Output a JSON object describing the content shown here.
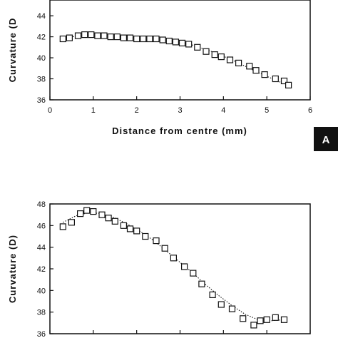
{
  "panel_badge": "A",
  "chart_data": [
    {
      "type": "scatter",
      "xlabel": "Distance  from  centre  (mm)",
      "ylabel": "Curvature  (D",
      "xlim": [
        0,
        6
      ],
      "ylim": [
        36,
        45.5
      ],
      "xticks": [
        "0",
        "1",
        "2",
        "3",
        "4",
        "5",
        "6"
      ],
      "yticks": [
        "36",
        "38",
        "40",
        "42",
        "44"
      ],
      "series": [
        {
          "marker": "open-square",
          "x": [
            0.3,
            0.45,
            0.65,
            0.8,
            0.95,
            1.1,
            1.25,
            1.4,
            1.55,
            1.7,
            1.85,
            2.0,
            2.15,
            2.3,
            2.45,
            2.6,
            2.75,
            2.9,
            3.05,
            3.2,
            3.4,
            3.6,
            3.8,
            3.95,
            4.15,
            4.35,
            4.6,
            4.75,
            4.95,
            5.2,
            5.4,
            5.5
          ],
          "y": [
            41.8,
            41.9,
            42.1,
            42.2,
            42.2,
            42.1,
            42.1,
            42.0,
            42.0,
            41.9,
            41.9,
            41.8,
            41.8,
            41.8,
            41.8,
            41.7,
            41.6,
            41.5,
            41.4,
            41.3,
            41.0,
            40.6,
            40.3,
            40.1,
            39.8,
            39.5,
            39.2,
            38.8,
            38.4,
            38.0,
            37.8,
            37.4
          ]
        },
        {
          "style": "dotted-fit",
          "x": [
            0.3,
            0.8,
            1.3,
            1.8,
            2.3,
            2.8,
            3.3,
            3.8,
            4.3,
            4.8,
            5.3,
            5.5
          ],
          "y": [
            41.9,
            42.15,
            42.1,
            41.95,
            41.8,
            41.6,
            41.2,
            40.5,
            39.6,
            38.6,
            37.7,
            37.4
          ]
        }
      ]
    },
    {
      "type": "scatter",
      "xlabel": "",
      "ylabel": "Curvature  (D)",
      "xlim": [
        0,
        6
      ],
      "ylim": [
        36,
        48
      ],
      "xticks": [],
      "yticks": [
        "36",
        "38",
        "40",
        "42",
        "44",
        "46",
        "48"
      ],
      "series": [
        {
          "marker": "open-square",
          "x": [
            0.3,
            0.5,
            0.7,
            0.85,
            1.0,
            1.2,
            1.35,
            1.5,
            1.7,
            1.85,
            2.0,
            2.2,
            2.45,
            2.65,
            2.85,
            3.1,
            3.3,
            3.5,
            3.75,
            3.95,
            4.2,
            4.45,
            4.7,
            4.85,
            5.0,
            5.2,
            5.4
          ],
          "y": [
            45.9,
            46.3,
            47.1,
            47.4,
            47.3,
            47.0,
            46.7,
            46.4,
            46.0,
            45.7,
            45.5,
            45.0,
            44.6,
            43.9,
            43.0,
            42.2,
            41.6,
            40.6,
            39.6,
            38.7,
            38.3,
            37.4,
            36.8,
            37.2,
            37.3,
            37.5,
            37.3
          ]
        },
        {
          "style": "dotted-fit",
          "x": [
            0.3,
            0.6,
            0.9,
            1.2,
            1.5,
            1.8,
            2.1,
            2.4,
            2.7,
            3.0,
            3.3,
            3.6,
            3.9,
            4.2,
            4.5,
            4.8,
            5.1,
            5.4
          ],
          "y": [
            46.3,
            46.9,
            47.2,
            47.1,
            46.7,
            46.1,
            45.4,
            44.6,
            43.6,
            42.6,
            41.6,
            40.5,
            39.5,
            38.6,
            37.8,
            37.3,
            37.2,
            37.3
          ]
        }
      ]
    }
  ]
}
